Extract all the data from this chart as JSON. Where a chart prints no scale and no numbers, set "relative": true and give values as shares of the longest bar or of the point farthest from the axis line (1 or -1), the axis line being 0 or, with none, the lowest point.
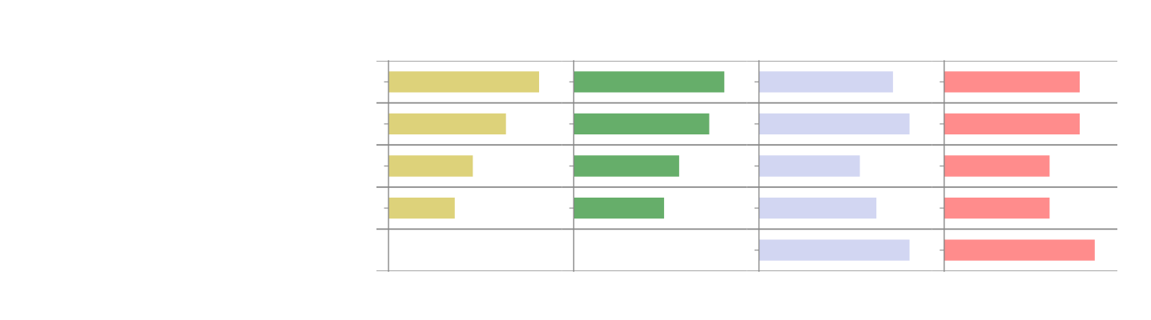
{
  "chart_data": [
    {
      "type": "bar",
      "orientation": "horizontal",
      "relative": true,
      "grid": "y",
      "categories": [
        null,
        null,
        null,
        null
      ],
      "color": "#ddd27a",
      "values": [
        1,
        0.78,
        0.56,
        0.44
      ]
    },
    {
      "type": "bar",
      "orientation": "horizontal",
      "relative": true,
      "grid": "y",
      "categories": [
        null,
        null,
        null,
        null
      ],
      "color": "#66ae6a",
      "values": [
        1,
        0.9,
        0.7,
        0.6
      ]
    },
    {
      "type": "bar",
      "orientation": "horizontal",
      "relative": true,
      "grid": "y",
      "categories": [
        null,
        null,
        null,
        null,
        null
      ],
      "color": "#d2d6f2",
      "values": [
        0.89,
        1,
        0.67,
        0.78,
        1
      ]
    },
    {
      "type": "bar",
      "orientation": "horizontal",
      "relative": true,
      "grid": "y",
      "categories": [
        null,
        null,
        null,
        null,
        null
      ],
      "color": "#ff8c8c",
      "values": [
        0.9,
        0.9,
        0.7,
        0.7,
        1
      ]
    }
  ]
}
